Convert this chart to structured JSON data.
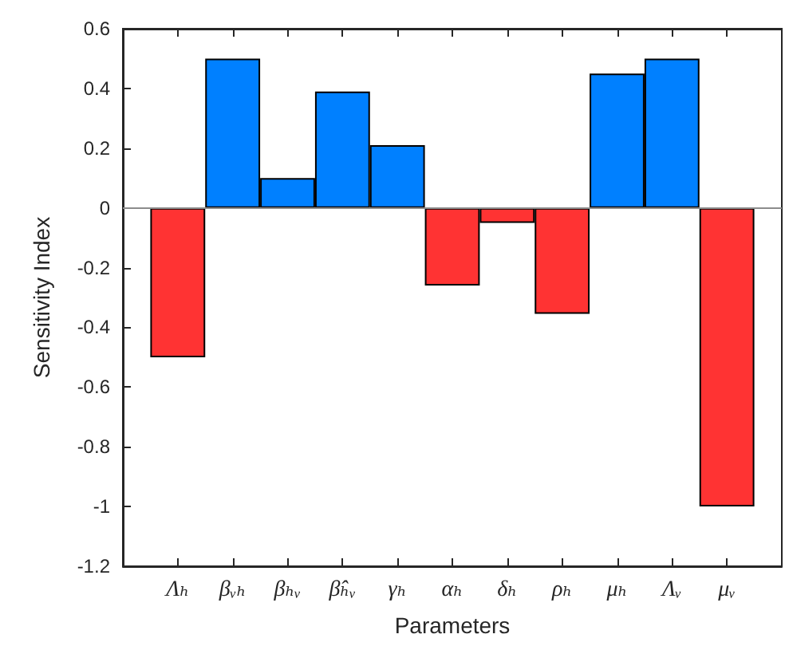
{
  "chart_data": {
    "type": "bar",
    "xlabel": "Parameters",
    "ylabel": "Sensitivity Index",
    "categories": [
      "Λₕ",
      "βᵥₕ",
      "βₕᵥ",
      "β̂ₕᵥ",
      "γₕ",
      "αₕ",
      "δₕ",
      "ρₕ",
      "μₕ",
      "Λᵥ",
      "μᵥ"
    ],
    "values": [
      -0.5,
      0.5,
      0.1,
      0.39,
      0.21,
      -0.26,
      -0.05,
      -0.355,
      0.45,
      0.5,
      -1.0
    ],
    "colors": [
      "#ff3333",
      "#0080ff",
      "#0080ff",
      "#0080ff",
      "#0080ff",
      "#ff3333",
      "#ff3333",
      "#ff3333",
      "#0080ff",
      "#0080ff",
      "#ff3333"
    ],
    "ylim": [
      -1.2,
      0.6
    ],
    "yticks": [
      -1.2,
      -1,
      -0.8,
      -0.6,
      -0.4,
      -0.2,
      0,
      0.2,
      0.4,
      0.6
    ],
    "ref_lines": [
      {
        "axis": "y",
        "value": 0,
        "color": "#8c8c8c"
      }
    ]
  }
}
